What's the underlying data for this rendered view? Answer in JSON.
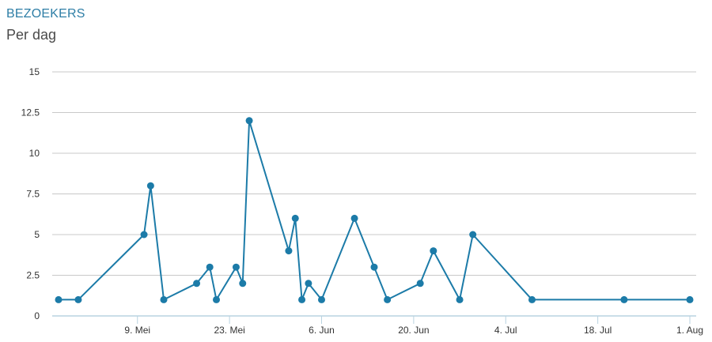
{
  "header": {
    "title": "BEZOEKERS",
    "subtitle": "Per dag"
  },
  "chart_data": {
    "type": "line",
    "title": "BEZOEKERS",
    "subtitle": "Per dag",
    "xlabel": "",
    "ylabel": "",
    "ylim": [
      0,
      15
    ],
    "yticks": [
      0,
      2.5,
      5,
      7.5,
      10,
      12.5,
      15
    ],
    "ytick_labels": [
      "0",
      "2.5",
      "5",
      "7.5",
      "10",
      "12.5",
      "15"
    ],
    "xlim": [
      "2024-04-27",
      "2024-08-01"
    ],
    "xticks": [
      {
        "date": "2024-05-09",
        "label": "9. Mei"
      },
      {
        "date": "2024-05-23",
        "label": "23. Mei"
      },
      {
        "date": "2024-06-06",
        "label": "6. Jun"
      },
      {
        "date": "2024-06-20",
        "label": "20. Jun"
      },
      {
        "date": "2024-07-04",
        "label": "4. Jul"
      },
      {
        "date": "2024-07-18",
        "label": "18. Jul"
      },
      {
        "date": "2024-08-01",
        "label": "1. Aug"
      }
    ],
    "grid": true,
    "colors": {
      "line": "#1c7ba8",
      "grid": "#c8c8c8",
      "axis": "#b9d3e0"
    },
    "series": [
      {
        "points": [
          {
            "x": "2024-04-27",
            "y": 1
          },
          {
            "x": "2024-04-30",
            "y": 1
          },
          {
            "x": "2024-05-10",
            "y": 5
          },
          {
            "x": "2024-05-11",
            "y": 8
          },
          {
            "x": "2024-05-13",
            "y": 1
          },
          {
            "x": "2024-05-18",
            "y": 2
          },
          {
            "x": "2024-05-20",
            "y": 3
          },
          {
            "x": "2024-05-21",
            "y": 1
          },
          {
            "x": "2024-05-24",
            "y": 3
          },
          {
            "x": "2024-05-25",
            "y": 2
          },
          {
            "x": "2024-05-26",
            "y": 12
          },
          {
            "x": "2024-06-01",
            "y": 4
          },
          {
            "x": "2024-06-02",
            "y": 6
          },
          {
            "x": "2024-06-03",
            "y": 1
          },
          {
            "x": "2024-06-04",
            "y": 2
          },
          {
            "x": "2024-06-06",
            "y": 1
          },
          {
            "x": "2024-06-11",
            "y": 6
          },
          {
            "x": "2024-06-14",
            "y": 3
          },
          {
            "x": "2024-06-16",
            "y": 1
          },
          {
            "x": "2024-06-21",
            "y": 2
          },
          {
            "x": "2024-06-23",
            "y": 4
          },
          {
            "x": "2024-06-27",
            "y": 1
          },
          {
            "x": "2024-06-29",
            "y": 5
          },
          {
            "x": "2024-07-08",
            "y": 1
          },
          {
            "x": "2024-07-22",
            "y": 1
          },
          {
            "x": "2024-08-01",
            "y": 1
          }
        ]
      }
    ]
  }
}
